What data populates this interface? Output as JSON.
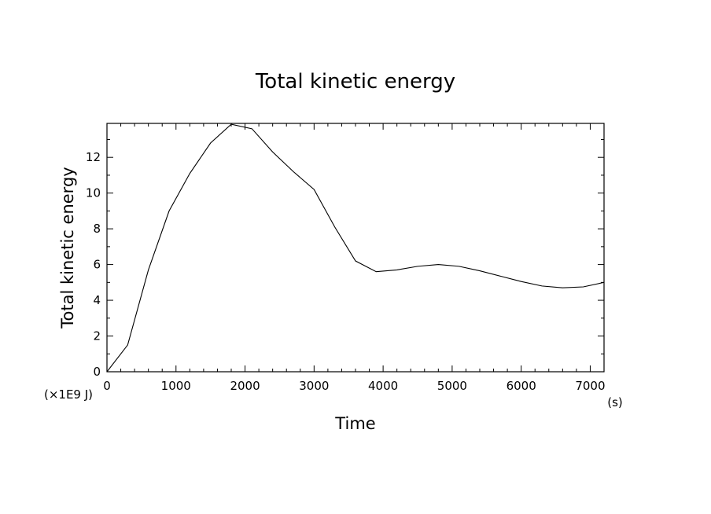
{
  "chart_data": {
    "type": "line",
    "title": "Total kinetic energy",
    "xlabel": "Time",
    "ylabel": "Total kinetic energy",
    "x_unit": "(s)",
    "y_unit": "(×1E9 J)",
    "xlim": [
      0,
      7200
    ],
    "ylim": [
      0,
      13.9
    ],
    "x_ticks": [
      0,
      1000,
      2000,
      3000,
      4000,
      5000,
      6000,
      7000
    ],
    "y_ticks": [
      0,
      2,
      4,
      6,
      8,
      10,
      12
    ],
    "grid": false,
    "line_color": "#000000",
    "series": [
      {
        "x": [
          0,
          300,
          600,
          900,
          1200,
          1500,
          1800,
          2100,
          2400,
          2700,
          3000,
          3300,
          3600,
          3900,
          4200,
          4500,
          4800,
          5100,
          5400,
          5700,
          6000,
          6300,
          6600,
          6900,
          7200
        ],
        "values": [
          0,
          1.5,
          5.7,
          9.0,
          11.1,
          12.8,
          13.85,
          13.6,
          12.3,
          11.2,
          10.2,
          8.1,
          6.2,
          5.6,
          5.7,
          5.9,
          6.0,
          5.9,
          5.65,
          5.35,
          5.05,
          4.8,
          4.7,
          4.75,
          5.0
        ]
      }
    ]
  }
}
